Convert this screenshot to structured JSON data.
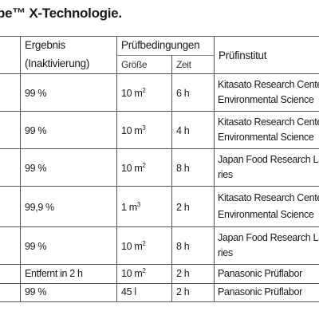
{
  "title": "be™ X-Technologie.",
  "headers": {
    "ergebnis_line1": "Ergebnis",
    "ergebnis_line2": "(Inaktivierung)",
    "pruefbedingungen": "Prüfbedingungen",
    "groesse": "Größe",
    "zeit": "Zeit",
    "pruefinstitut": "Prüfinstitut"
  },
  "rows": [
    {
      "ergebnis": "99 %",
      "groesse": "10 m",
      "groesse_sup": "2",
      "zeit": "6 h",
      "institut_line1": "Kitasato Research Center",
      "institut_line2": "Environmental Science"
    },
    {
      "ergebnis": "99 %",
      "groesse": "10 m",
      "groesse_sup": "3",
      "zeit": "4 h",
      "institut_line1": "Kitasato Research Center",
      "institut_line2": "Environmental Science"
    },
    {
      "ergebnis": "99 %",
      "groesse": "10 m",
      "groesse_sup": "2",
      "zeit": "8 h",
      "institut_line1": "Japan Food Research Labo",
      "institut_line2": "ries"
    },
    {
      "ergebnis": "99,9 %",
      "groesse": "1 m",
      "groesse_sup": "3",
      "zeit": "2 h",
      "institut_line1": "Kitasato Research Center",
      "institut_line2": "Environmental Science"
    },
    {
      "ergebnis": "99 %",
      "groesse": "10 m",
      "groesse_sup": "2",
      "zeit": "8 h",
      "institut_line1": "Japan Food Research Labo",
      "institut_line2": "ries"
    },
    {
      "ergebnis": "Entfernt in 2 h",
      "groesse": "10 m",
      "groesse_sup": "2",
      "zeit": "2 h",
      "institut_line1": "Panasonic Prüflabor",
      "institut_line2": ""
    },
    {
      "ergebnis": "99 %",
      "groesse": "45 l",
      "groesse_sup": "",
      "zeit": "2 h",
      "institut_line1": "Panasonic Prüflabor",
      "institut_line2": ""
    }
  ]
}
